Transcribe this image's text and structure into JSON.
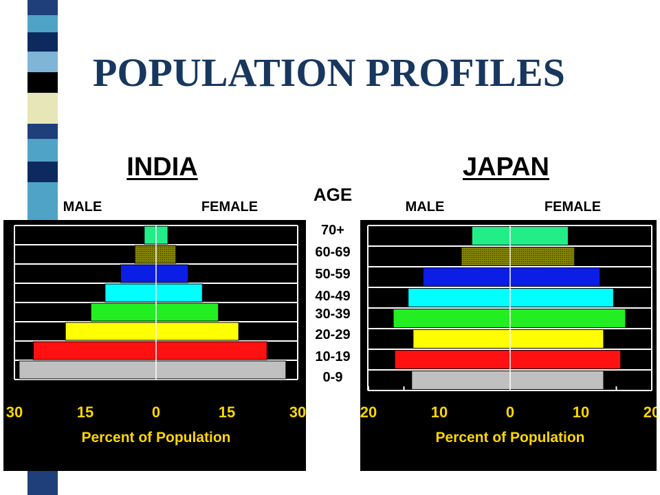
{
  "title": "POPULATION PROFILES",
  "age_title": "AGE",
  "age_groups": [
    "70+",
    "60-69",
    "50-59",
    "40-49",
    "30-39",
    "20-29",
    "10-19",
    "0-9"
  ],
  "colors": {
    "title": "#17375e",
    "tick_labels": "#ffd700",
    "axis_title": "#ffd700",
    "panel_background": "#000000",
    "age_bands": [
      "#22ee88",
      "#808000",
      "#0a1ee6",
      "#00ffff",
      "#22ee22",
      "#ffff00",
      "#ff1111",
      "#c0c0c0"
    ]
  },
  "chart_data": [
    {
      "type": "bar",
      "orientation": "horizontal-diverging",
      "title": "INDIA",
      "left_label": "MALE",
      "right_label": "FEMALE",
      "xlabel": "Percent of Population",
      "xlim": [
        -30,
        30
      ],
      "x_ticks": [
        "30",
        "15",
        "0",
        "15",
        "30"
      ],
      "categories": [
        "70+",
        "60-69",
        "50-59",
        "40-49",
        "30-39",
        "20-29",
        "10-19",
        "0-9"
      ],
      "series": [
        {
          "name": "MALE",
          "values": [
            2.5,
            4.5,
            7.5,
            10.8,
            13.8,
            19.2,
            26,
            29
          ]
        },
        {
          "name": "FEMALE",
          "values": [
            2.5,
            4.2,
            6.8,
            9.8,
            13.2,
            17.5,
            23.5,
            27.5
          ]
        }
      ],
      "grid": true
    },
    {
      "type": "bar",
      "orientation": "horizontal-diverging",
      "title": "JAPAN",
      "left_label": "MALE",
      "right_label": "FEMALE",
      "xlabel": "Percent of Population",
      "xlim": [
        -20,
        20
      ],
      "x_ticks": [
        "20",
        "10",
        "0",
        "10",
        "20"
      ],
      "categories": [
        "70+",
        "60-69",
        "50-59",
        "40-49",
        "30-39",
        "20-29",
        "10-19",
        "0-9"
      ],
      "series": [
        {
          "name": "MALE",
          "values": [
            5.4,
            6.9,
            12.3,
            14.4,
            16.5,
            13.7,
            16.3,
            13.9
          ]
        },
        {
          "name": "FEMALE",
          "values": [
            8.2,
            9.1,
            12.7,
            14.6,
            16.3,
            13.2,
            15.6,
            13.2
          ]
        }
      ],
      "grid": true
    }
  ]
}
